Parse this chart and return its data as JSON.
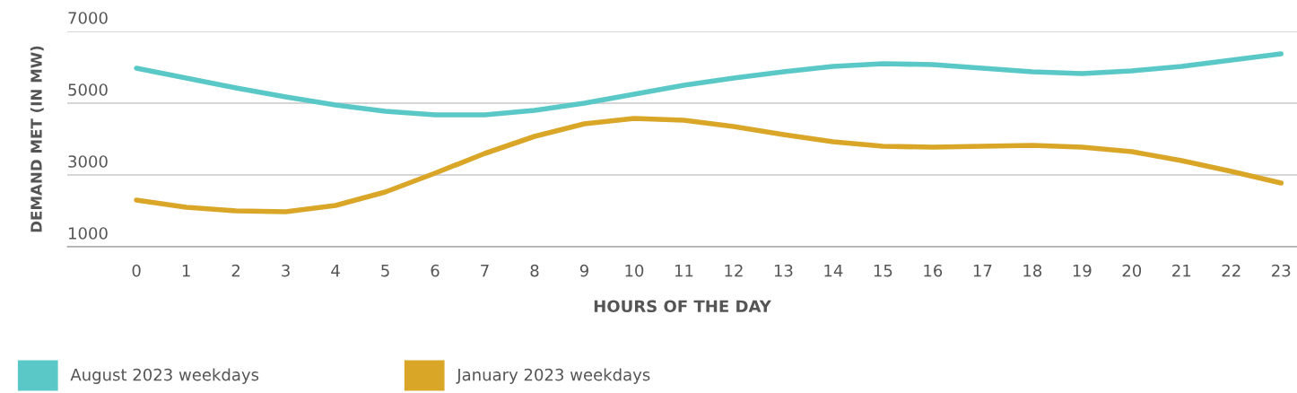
{
  "chart_data": {
    "type": "line",
    "xlabel": "HOURS OF THE DAY",
    "ylabel": "DEMAND MET (IN MW)",
    "x": [
      0,
      1,
      2,
      3,
      4,
      5,
      6,
      7,
      8,
      9,
      10,
      11,
      12,
      13,
      14,
      15,
      16,
      17,
      18,
      19,
      20,
      21,
      22,
      23
    ],
    "series": [
      {
        "name": "August 2023 weekdays",
        "color": "#5bc8c8",
        "values": [
          5975,
          5700,
          5425,
          5175,
          4950,
          4775,
          4675,
          4675,
          4800,
          5000,
          5250,
          5500,
          5700,
          5875,
          6025,
          6100,
          6075,
          5975,
          5875,
          5825,
          5900,
          6025,
          6200,
          6375
        ]
      },
      {
        "name": "January 2023 weekdays",
        "color": "#d9a628",
        "values": [
          2300,
          2100,
          2000,
          1975,
          2150,
          2525,
          3050,
          3600,
          4075,
          4425,
          4575,
          4525,
          4350,
          4125,
          3925,
          3800,
          3775,
          3800,
          3825,
          3775,
          3650,
          3400,
          3100,
          2775
        ]
      }
    ],
    "xlim": [
      -1.39,
      23.32
    ],
    "xticks": [
      0,
      1,
      2,
      3,
      4,
      5,
      6,
      7,
      8,
      9,
      10,
      11,
      12,
      13,
      14,
      15,
      16,
      17,
      18,
      19,
      20,
      21,
      22,
      23
    ],
    "ylim": [
      1000,
      7000
    ],
    "yticks": [
      1000,
      3000,
      5000,
      7000
    ],
    "grid": "y",
    "legend": "bottom",
    "marker": "none",
    "line_style": "solid"
  }
}
